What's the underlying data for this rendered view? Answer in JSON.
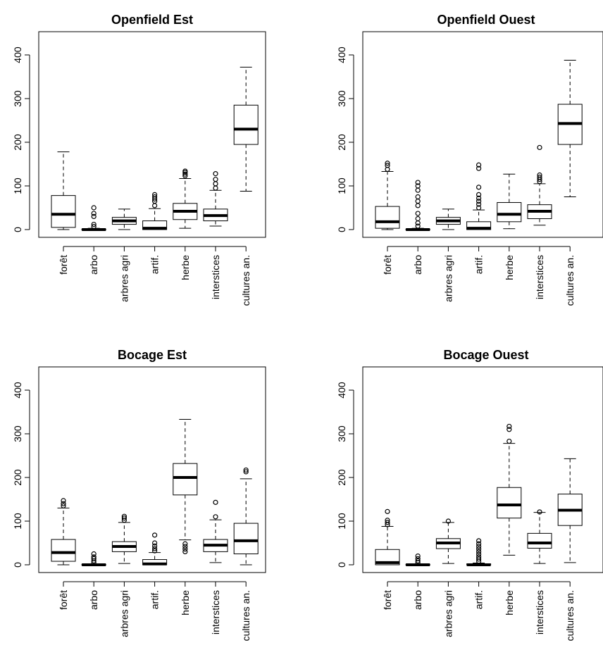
{
  "figure": {
    "axis_ticks": [
      "0",
      "100",
      "200",
      "300",
      "400"
    ],
    "categories": [
      "forêt",
      "arbo",
      "arbres agri",
      "artif.",
      "herbe",
      "interstices",
      "cultures an."
    ]
  },
  "chart_data": [
    {
      "type": "box",
      "title": "Openfield Est",
      "categories": [
        "forêt",
        "arbo",
        "arbres agri",
        "artif.",
        "herbe",
        "interstices",
        "cultures an."
      ],
      "ylim": [
        0,
        400
      ],
      "yticks": [
        0,
        100,
        200,
        300,
        400
      ],
      "boxes": [
        {
          "category": "forêt",
          "whisker_low": 0,
          "q1": 5,
          "median": 35,
          "q3": 78,
          "whisker_high": 178,
          "outliers": []
        },
        {
          "category": "arbo",
          "whisker_low": 0,
          "q1": 0,
          "median": 0,
          "q3": 1,
          "whisker_high": 3,
          "outliers": [
            7,
            12,
            30,
            37,
            50
          ]
        },
        {
          "category": "arbres agri",
          "whisker_low": 0,
          "q1": 12,
          "median": 20,
          "q3": 28,
          "whisker_high": 47,
          "outliers": []
        },
        {
          "category": "artif.",
          "whisker_low": 0,
          "q1": 0,
          "median": 3,
          "q3": 20,
          "whisker_high": 48,
          "outliers": [
            55,
            65,
            70,
            75,
            80
          ]
        },
        {
          "category": "herbe",
          "whisker_low": 3,
          "q1": 23,
          "median": 42,
          "q3": 60,
          "whisker_high": 117,
          "outliers": [
            123,
            127,
            131,
            134
          ]
        },
        {
          "category": "interstices",
          "whisker_low": 8,
          "q1": 20,
          "median": 32,
          "q3": 47,
          "whisker_high": 90,
          "outliers": [
            95,
            105,
            115,
            128
          ]
        },
        {
          "category": "cultures an.",
          "whisker_low": 88,
          "q1": 195,
          "median": 230,
          "q3": 285,
          "whisker_high": 372,
          "outliers": []
        }
      ]
    },
    {
      "type": "box",
      "title": "Openfield Ouest",
      "categories": [
        "forêt",
        "arbo",
        "arbres agri",
        "artif.",
        "herbe",
        "interstices",
        "cultures an."
      ],
      "ylim": [
        0,
        400
      ],
      "yticks": [
        0,
        100,
        200,
        300,
        400
      ],
      "boxes": [
        {
          "category": "forêt",
          "whisker_low": 0,
          "q1": 3,
          "median": 18,
          "q3": 53,
          "whisker_high": 133,
          "outliers": [
            138,
            147,
            152
          ]
        },
        {
          "category": "arbo",
          "whisker_low": 0,
          "q1": 0,
          "median": 0,
          "q3": 1,
          "whisker_high": 3,
          "outliers": [
            8,
            15,
            25,
            37,
            55,
            65,
            75,
            90,
            100,
            108
          ]
        },
        {
          "category": "arbres agri",
          "whisker_low": 0,
          "q1": 12,
          "median": 20,
          "q3": 28,
          "whisker_high": 47,
          "outliers": []
        },
        {
          "category": "artif.",
          "whisker_low": 0,
          "q1": 0,
          "median": 3,
          "q3": 18,
          "whisker_high": 45,
          "outliers": [
            50,
            58,
            65,
            72,
            80,
            97,
            140,
            148
          ]
        },
        {
          "category": "herbe",
          "whisker_low": 2,
          "q1": 18,
          "median": 35,
          "q3": 62,
          "whisker_high": 127,
          "outliers": []
        },
        {
          "category": "interstices",
          "whisker_low": 10,
          "q1": 25,
          "median": 42,
          "q3": 57,
          "whisker_high": 105,
          "outliers": [
            110,
            115,
            120,
            125,
            188
          ]
        },
        {
          "category": "cultures an.",
          "whisker_low": 75,
          "q1": 195,
          "median": 243,
          "q3": 287,
          "whisker_high": 388,
          "outliers": []
        }
      ]
    },
    {
      "type": "box",
      "title": "Bocage Est",
      "categories": [
        "forêt",
        "arbo",
        "arbres agri",
        "artif.",
        "herbe",
        "interstices",
        "cultures an."
      ],
      "ylim": [
        0,
        400
      ],
      "yticks": [
        0,
        100,
        200,
        300,
        400
      ],
      "boxes": [
        {
          "category": "forêt",
          "whisker_low": 0,
          "q1": 8,
          "median": 28,
          "q3": 58,
          "whisker_high": 130,
          "outliers": [
            135,
            140,
            147
          ]
        },
        {
          "category": "arbo",
          "whisker_low": 0,
          "q1": 0,
          "median": 0,
          "q3": 1,
          "whisker_high": 2,
          "outliers": [
            5,
            9,
            14,
            18,
            25
          ]
        },
        {
          "category": "arbres agri",
          "whisker_low": 3,
          "q1": 30,
          "median": 42,
          "q3": 53,
          "whisker_high": 97,
          "outliers": [
            102,
            107,
            111
          ]
        },
        {
          "category": "artif.",
          "whisker_low": 0,
          "q1": 0,
          "median": 2,
          "q3": 12,
          "whisker_high": 28,
          "outliers": [
            32,
            37,
            43,
            50,
            68
          ]
        },
        {
          "category": "herbe",
          "whisker_low": 57,
          "q1": 160,
          "median": 200,
          "q3": 232,
          "whisker_high": 333,
          "outliers": [
            30,
            36,
            42,
            48
          ]
        },
        {
          "category": "interstices",
          "whisker_low": 5,
          "q1": 30,
          "median": 45,
          "q3": 58,
          "whisker_high": 103,
          "outliers": [
            110,
            143
          ]
        },
        {
          "category": "cultures an.",
          "whisker_low": 0,
          "q1": 25,
          "median": 55,
          "q3": 95,
          "whisker_high": 197,
          "outliers": [
            213,
            217
          ]
        }
      ]
    },
    {
      "type": "box",
      "title": "Bocage Ouest",
      "categories": [
        "forêt",
        "arbo",
        "arbres agri",
        "artif.",
        "herbe",
        "interstices",
        "cultures an."
      ],
      "ylim": [
        0,
        400
      ],
      "yticks": [
        0,
        100,
        200,
        300,
        400
      ],
      "boxes": [
        {
          "category": "forêt",
          "whisker_low": 0,
          "q1": 0,
          "median": 5,
          "q3": 35,
          "whisker_high": 88,
          "outliers": [
            92,
            97,
            102,
            122
          ]
        },
        {
          "category": "arbo",
          "whisker_low": 0,
          "q1": 0,
          "median": 0,
          "q3": 1,
          "whisker_high": 2,
          "outliers": [
            5,
            9,
            14,
            20
          ]
        },
        {
          "category": "arbres agri",
          "whisker_low": 3,
          "q1": 37,
          "median": 50,
          "q3": 60,
          "whisker_high": 97,
          "outliers": [
            100
          ]
        },
        {
          "category": "artif.",
          "whisker_low": 0,
          "q1": 0,
          "median": 0,
          "q3": 2,
          "whisker_high": 4,
          "outliers": [
            8,
            13,
            18,
            24,
            30,
            36,
            42,
            48,
            55
          ]
        },
        {
          "category": "herbe",
          "whisker_low": 22,
          "q1": 107,
          "median": 137,
          "q3": 177,
          "whisker_high": 278,
          "outliers": [
            283,
            310,
            317
          ]
        },
        {
          "category": "interstices",
          "whisker_low": 3,
          "q1": 38,
          "median": 50,
          "q3": 72,
          "whisker_high": 120,
          "outliers": [
            121
          ]
        },
        {
          "category": "cultures an.",
          "whisker_low": 5,
          "q1": 90,
          "median": 125,
          "q3": 162,
          "whisker_high": 243,
          "outliers": []
        }
      ]
    }
  ]
}
